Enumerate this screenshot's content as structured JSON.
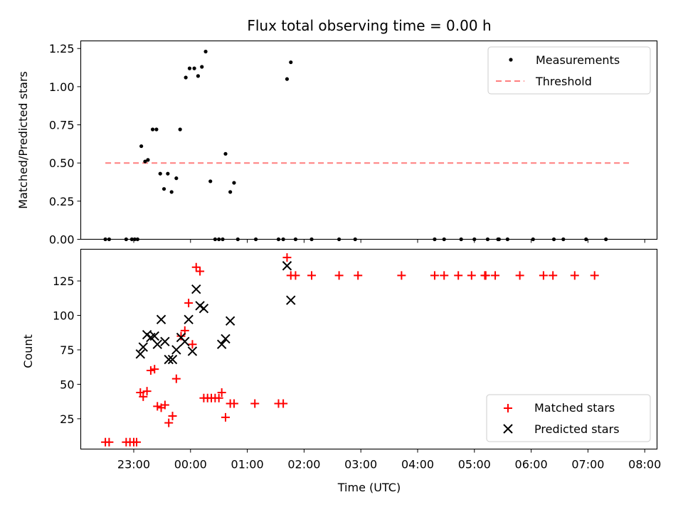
{
  "chart_data": {
    "type": "scatter",
    "title": "Flux total observing time = 0.00 h",
    "xlabel": "Time (UTC)",
    "x_ticks": [
      "23:00",
      "00:00",
      "01:00",
      "02:00",
      "03:00",
      "04:00",
      "05:00",
      "06:00",
      "07:00",
      "08:00"
    ],
    "xlim": [
      "22:04",
      "08:13"
    ],
    "top_panel": {
      "ylabel": "Matched/Predicted stars",
      "ylim": [
        0,
        1.3
      ],
      "y_ticks": [
        "0.00",
        "0.25",
        "0.50",
        "0.75",
        "1.00",
        "1.25"
      ],
      "legend_position": "top-right",
      "threshold": {
        "name": "Threshold",
        "value": 0.5,
        "x_range": [
          "22:30",
          "07:45"
        ],
        "color": "#ff7f7f"
      },
      "measurements": {
        "name": "Measurements",
        "color": "#000000",
        "points": [
          [
            "22:30",
            0
          ],
          [
            "22:34",
            0
          ],
          [
            "22:52",
            0
          ],
          [
            "22:58",
            0
          ],
          [
            "23:01",
            0
          ],
          [
            "23:04",
            0
          ],
          [
            "23:08",
            0.61
          ],
          [
            "23:12",
            0.51
          ],
          [
            "23:15",
            0.52
          ],
          [
            "23:20",
            0.72
          ],
          [
            "23:24",
            0.72
          ],
          [
            "23:28",
            0.43
          ],
          [
            "23:32",
            0.33
          ],
          [
            "23:36",
            0.43
          ],
          [
            "23:40",
            0.31
          ],
          [
            "23:45",
            0.4
          ],
          [
            "23:49",
            0.72
          ],
          [
            "23:55",
            1.06
          ],
          [
            "23:59",
            1.12
          ],
          [
            "00:04",
            1.12
          ],
          [
            "00:08",
            1.07
          ],
          [
            "00:12",
            1.13
          ],
          [
            "00:16",
            1.23
          ],
          [
            "00:21",
            0.38
          ],
          [
            "00:26",
            0
          ],
          [
            "00:30",
            0
          ],
          [
            "00:34",
            0
          ],
          [
            "00:37",
            0.56
          ],
          [
            "00:42",
            0.31
          ],
          [
            "00:46",
            0.37
          ],
          [
            "00:50",
            0
          ],
          [
            "01:09",
            0
          ],
          [
            "01:33",
            0
          ],
          [
            "01:38",
            0
          ],
          [
            "01:42",
            1.05
          ],
          [
            "01:46",
            1.16
          ],
          [
            "01:51",
            0
          ],
          [
            "02:08",
            0
          ],
          [
            "02:37",
            0
          ],
          [
            "02:54",
            0
          ],
          [
            "04:18",
            0
          ],
          [
            "04:28",
            0
          ],
          [
            "04:46",
            0
          ],
          [
            "05:00",
            0
          ],
          [
            "05:14",
            0
          ],
          [
            "05:25",
            0
          ],
          [
            "05:26",
            0
          ],
          [
            "05:35",
            0
          ],
          [
            "06:02",
            0
          ],
          [
            "06:24",
            0
          ],
          [
            "06:34",
            0
          ],
          [
            "06:58",
            0
          ],
          [
            "07:19",
            0
          ]
        ]
      }
    },
    "bottom_panel": {
      "ylabel": "Count",
      "ylim": [
        3,
        148
      ],
      "y_ticks": [
        "25",
        "50",
        "75",
        "100",
        "125"
      ],
      "legend_position": "bottom-right",
      "series": [
        {
          "name": "Matched stars",
          "marker": "plus",
          "color": "#ff0000",
          "points": [
            [
              "22:30",
              8
            ],
            [
              "22:34",
              8
            ],
            [
              "22:52",
              8
            ],
            [
              "22:56",
              8
            ],
            [
              "23:00",
              8
            ],
            [
              "23:03",
              8
            ],
            [
              "23:07",
              44
            ],
            [
              "23:10",
              41
            ],
            [
              "23:14",
              45
            ],
            [
              "23:18",
              60
            ],
            [
              "23:22",
              61
            ],
            [
              "23:25",
              34
            ],
            [
              "23:29",
              33
            ],
            [
              "23:33",
              35
            ],
            [
              "23:37",
              22
            ],
            [
              "23:41",
              27
            ],
            [
              "23:45",
              54
            ],
            [
              "23:50",
              85
            ],
            [
              "23:54",
              89
            ],
            [
              "23:58",
              109
            ],
            [
              "00:02",
              79
            ],
            [
              "00:06",
              135
            ],
            [
              "00:10",
              132
            ],
            [
              "00:14",
              40
            ],
            [
              "00:18",
              40
            ],
            [
              "00:22",
              40
            ],
            [
              "00:26",
              40
            ],
            [
              "00:30",
              40
            ],
            [
              "00:33",
              44
            ],
            [
              "00:37",
              26
            ],
            [
              "00:42",
              36
            ],
            [
              "00:46",
              36
            ],
            [
              "01:08",
              36
            ],
            [
              "01:33",
              36
            ],
            [
              "01:38",
              36
            ],
            [
              "01:42",
              142
            ],
            [
              "01:46",
              129
            ],
            [
              "01:51",
              129
            ],
            [
              "02:08",
              129
            ],
            [
              "02:37",
              129
            ],
            [
              "02:57",
              129
            ],
            [
              "03:43",
              129
            ],
            [
              "04:18",
              129
            ],
            [
              "04:28",
              129
            ],
            [
              "04:43",
              129
            ],
            [
              "04:57",
              129
            ],
            [
              "05:11",
              129
            ],
            [
              "05:12",
              129
            ],
            [
              "05:22",
              129
            ],
            [
              "05:48",
              129
            ],
            [
              "06:13",
              129
            ],
            [
              "06:23",
              129
            ],
            [
              "06:46",
              129
            ],
            [
              "07:07",
              129
            ]
          ]
        },
        {
          "name": "Predicted stars",
          "marker": "x",
          "color": "#000000",
          "points": [
            [
              "23:07",
              72
            ],
            [
              "23:10",
              77
            ],
            [
              "23:14",
              86
            ],
            [
              "23:18",
              84
            ],
            [
              "23:22",
              85
            ],
            [
              "23:25",
              79
            ],
            [
              "23:29",
              97
            ],
            [
              "23:33",
              81
            ],
            [
              "23:37",
              68
            ],
            [
              "23:41",
              68
            ],
            [
              "23:45",
              75
            ],
            [
              "23:50",
              84
            ],
            [
              "23:54",
              81
            ],
            [
              "23:58",
              97
            ],
            [
              "00:02",
              74
            ],
            [
              "00:06",
              119
            ],
            [
              "00:10",
              107
            ],
            [
              "00:14",
              105
            ],
            [
              "00:33",
              79
            ],
            [
              "00:37",
              83
            ],
            [
              "00:42",
              96
            ],
            [
              "01:42",
              136
            ],
            [
              "01:46",
              111
            ]
          ]
        }
      ]
    }
  }
}
